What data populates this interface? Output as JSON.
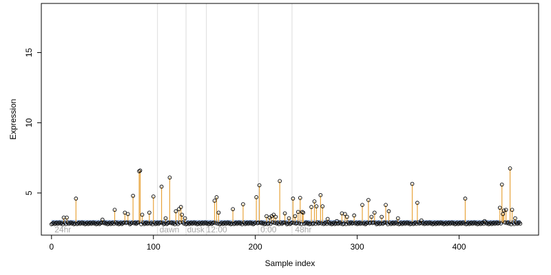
{
  "chart_data": {
    "type": "scatter",
    "xlabel": "Sample index",
    "ylabel": "Expression",
    "xlim": [
      -10,
      478
    ],
    "ylim": [
      2.0,
      18.5
    ],
    "x_ticks": [
      0,
      100,
      200,
      300,
      400
    ],
    "y_ticks": [
      5,
      10,
      15
    ],
    "grid": false,
    "legend": "none",
    "baseline": 2.85,
    "colors": {
      "stem": "#e8a33a",
      "baseline_band": "#a9c1e6",
      "point_edge": "#000000",
      "period_line": "#dcdcdc",
      "period_label": "#a8a8a8"
    },
    "period_lines": [
      104,
      132,
      152,
      203,
      236
    ],
    "sample_labels": [
      {
        "x": 3,
        "text": "24hr"
      },
      {
        "x": 106,
        "text": "dawn"
      },
      {
        "x": 133,
        "text": "dusk"
      },
      {
        "x": 152,
        "text": "12:00"
      },
      {
        "x": 205,
        "text": "0:00"
      },
      {
        "x": 239,
        "text": "48hr"
      }
    ],
    "peaks": [
      [
        12,
        3.25
      ],
      [
        15,
        3.25
      ],
      [
        24,
        4.6
      ],
      [
        50,
        3.1
      ],
      [
        62,
        3.8
      ],
      [
        72,
        3.6
      ],
      [
        75,
        3.5
      ],
      [
        80,
        4.8
      ],
      [
        86,
        6.55
      ],
      [
        87,
        6.6
      ],
      [
        89,
        3.45
      ],
      [
        96,
        3.6
      ],
      [
        100,
        4.75
      ],
      [
        108,
        5.45
      ],
      [
        112,
        3.2
      ],
      [
        116,
        6.1
      ],
      [
        122,
        3.7
      ],
      [
        125,
        3.85
      ],
      [
        127,
        4.0
      ],
      [
        128,
        3.45
      ],
      [
        131,
        3.2
      ],
      [
        160,
        4.45
      ],
      [
        162,
        4.7
      ],
      [
        164,
        3.6
      ],
      [
        178,
        3.85
      ],
      [
        188,
        4.2
      ],
      [
        201,
        4.7
      ],
      [
        204,
        5.55
      ],
      [
        211,
        3.35
      ],
      [
        214,
        3.25
      ],
      [
        216,
        3.35
      ],
      [
        218,
        3.45
      ],
      [
        220,
        3.3
      ],
      [
        224,
        5.85
      ],
      [
        229,
        3.55
      ],
      [
        233,
        3.2
      ],
      [
        237,
        4.6
      ],
      [
        239,
        3.35
      ],
      [
        242,
        3.65
      ],
      [
        244,
        4.65
      ],
      [
        246,
        3.65
      ],
      [
        247,
        3.6
      ],
      [
        255,
        4.0
      ],
      [
        258,
        4.4
      ],
      [
        260,
        4.05
      ],
      [
        264,
        4.85
      ],
      [
        266,
        4.05
      ],
      [
        271,
        3.15
      ],
      [
        280,
        3.0
      ],
      [
        285,
        3.55
      ],
      [
        288,
        3.5
      ],
      [
        290,
        3.3
      ],
      [
        297,
        3.4
      ],
      [
        305,
        4.15
      ],
      [
        311,
        4.5
      ],
      [
        314,
        3.3
      ],
      [
        317,
        3.6
      ],
      [
        324,
        3.3
      ],
      [
        328,
        4.15
      ],
      [
        331,
        3.7
      ],
      [
        340,
        3.2
      ],
      [
        354,
        5.65
      ],
      [
        359,
        4.3
      ],
      [
        363,
        3.05
      ],
      [
        406,
        4.6
      ],
      [
        425,
        3.0
      ],
      [
        440,
        3.95
      ],
      [
        442,
        5.6
      ],
      [
        443,
        3.5
      ],
      [
        444,
        3.75
      ],
      [
        446,
        3.8
      ],
      [
        450,
        6.75
      ],
      [
        452,
        3.8
      ],
      [
        455,
        3.2
      ]
    ]
  }
}
